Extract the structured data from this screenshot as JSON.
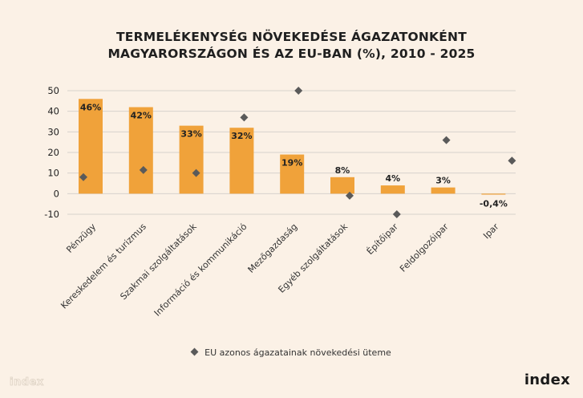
{
  "title_line1": "TERMELÉKENYSÉG NÖVEKEDÉSE ÁGAZATONKÉNT",
  "title_line2": "MAGYARORSZÁGON ÉS AZ EU-BAN (%), 2010 - 2025",
  "legend_label": "EU azonos ágazatainak növekedési üteme",
  "watermark": "index",
  "logo": "index",
  "chart_data": {
    "type": "bar",
    "categories": [
      "Pénzügy",
      "Kereskedelem és turizmus",
      "Szakmai szolgáltatások",
      "Információ és kommunikáció",
      "Mezőgazdaság",
      "Egyéb szolgáltatások",
      "Építőipar",
      "Feldolgozóipar",
      "Ipar"
    ],
    "series": [
      {
        "values": [
          46,
          42,
          33,
          32,
          19,
          8,
          4,
          3,
          -0.4
        ],
        "labels": [
          "46%",
          "42%",
          "33%",
          "32%",
          "19%",
          "8%",
          "4%",
          "3%",
          "-0,4%"
        ]
      },
      {
        "name": "EU azonos ágazatainak növekedési üteme",
        "values": [
          8,
          11.5,
          10,
          37,
          50,
          -1,
          -10,
          26,
          16
        ]
      }
    ],
    "yticks": [
      -10,
      0,
      10,
      20,
      30,
      40,
      50
    ],
    "ylim": [
      -10,
      50
    ],
    "grid": true,
    "legend": "bottom",
    "colors": {
      "bar": "#f0a23a",
      "marker": "#5a5a5a",
      "grid": "#d7d2cc"
    }
  }
}
